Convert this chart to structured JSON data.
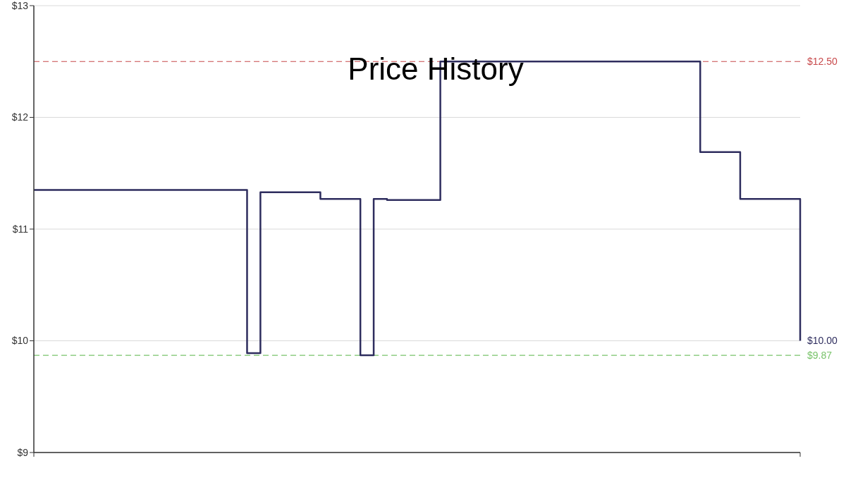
{
  "chart_data": {
    "type": "step",
    "title": "Price History",
    "categories": [
      null,
      null,
      null,
      null,
      null,
      null,
      null,
      null,
      null,
      null,
      null,
      null,
      null,
      null,
      null,
      null,
      null,
      null,
      null,
      null,
      null,
      null,
      null,
      null,
      null,
      null,
      null,
      null,
      null,
      null,
      null,
      null,
      null,
      null,
      null,
      null,
      null,
      null,
      null,
      null,
      null,
      null,
      null,
      null,
      null,
      null,
      null,
      null,
      null,
      null,
      null,
      null,
      null,
      null,
      null,
      null,
      null,
      null,
      null,
      null,
      null,
      null,
      null,
      null,
      null,
      null,
      null,
      null,
      null,
      null,
      null,
      null,
      null,
      null,
      null,
      null,
      null,
      null,
      null,
      null,
      null,
      null,
      null,
      null,
      null,
      null,
      null,
      null,
      null,
      null,
      null,
      null,
      null,
      null,
      null,
      null,
      null,
      null,
      null,
      null,
      null,
      null,
      null,
      null,
      null,
      null,
      null,
      null,
      null,
      null,
      null,
      null,
      null,
      null,
      null,
      null
    ],
    "values": [
      11.35,
      11.35,
      11.35,
      11.35,
      11.35,
      11.35,
      11.35,
      11.35,
      11.35,
      11.35,
      11.35,
      11.35,
      11.35,
      11.35,
      11.35,
      11.35,
      11.35,
      11.35,
      11.35,
      11.35,
      11.35,
      11.35,
      11.35,
      11.35,
      11.35,
      11.35,
      11.35,
      11.35,
      11.35,
      11.35,
      11.35,
      11.35,
      9.89,
      9.89,
      11.33,
      11.33,
      11.33,
      11.33,
      11.33,
      11.33,
      11.33,
      11.33,
      11.33,
      11.27,
      11.27,
      11.27,
      11.27,
      11.27,
      11.27,
      9.87,
      9.87,
      11.27,
      11.27,
      11.26,
      11.26,
      11.26,
      11.26,
      11.26,
      11.26,
      11.26,
      11.26,
      12.5,
      12.5,
      12.5,
      12.5,
      12.5,
      12.5,
      12.5,
      12.5,
      12.5,
      12.5,
      12.5,
      12.5,
      12.5,
      12.5,
      12.5,
      12.5,
      12.5,
      12.5,
      12.5,
      12.5,
      12.5,
      12.5,
      12.5,
      12.5,
      12.5,
      12.5,
      12.5,
      12.5,
      12.5,
      12.5,
      12.5,
      12.5,
      12.5,
      12.5,
      12.5,
      12.5,
      12.5,
      12.5,
      12.5,
      11.69,
      11.69,
      11.69,
      11.69,
      11.69,
      11.69,
      11.27,
      11.27,
      11.27,
      11.27,
      11.27,
      11.27,
      11.27,
      11.27,
      11.27,
      10.0
    ],
    "value_labels": [
      null,
      null,
      null,
      null,
      null,
      null,
      null,
      null,
      null,
      null,
      null,
      null,
      null,
      null,
      null,
      null,
      null,
      null,
      null,
      null,
      null,
      null,
      null,
      null,
      null,
      null,
      null,
      null,
      null,
      null,
      null,
      null,
      null,
      null,
      null,
      null,
      null,
      null,
      null,
      null,
      null,
      null,
      null,
      null,
      null,
      null,
      null,
      null,
      null,
      null,
      null,
      null,
      null,
      null,
      null,
      null,
      null,
      null,
      null,
      null,
      null,
      null,
      null,
      null,
      null,
      null,
      null,
      null,
      null,
      null,
      null,
      null,
      null,
      null,
      null,
      null,
      null,
      null,
      null,
      null,
      null,
      null,
      null,
      null,
      null,
      null,
      null,
      null,
      null,
      null,
      null,
      null,
      null,
      null,
      null,
      null,
      null,
      null,
      null,
      null,
      null,
      null,
      null,
      null,
      null,
      null,
      null,
      null,
      null,
      null,
      null,
      null,
      null,
      null,
      null,
      "$10.00"
    ],
    "color": "#2e2d5e",
    "marker": "none",
    "ylim": [
      9,
      13
    ],
    "yticks": [
      {
        "value": 9,
        "label": "$9"
      },
      {
        "value": 10,
        "label": "$10"
      },
      {
        "value": 11,
        "label": "$11"
      },
      {
        "value": 12,
        "label": "$12"
      },
      {
        "value": 13,
        "label": "$13"
      }
    ],
    "grid": "y",
    "ref_lines": [
      {
        "axis": "y",
        "value": 12.5,
        "label": "$12.50",
        "color": "#c8494b",
        "line_style": "dashed"
      },
      {
        "axis": "y",
        "value": 9.87,
        "label": "$9.87",
        "color": "#78c36a",
        "line_style": "dashed"
      }
    ]
  }
}
